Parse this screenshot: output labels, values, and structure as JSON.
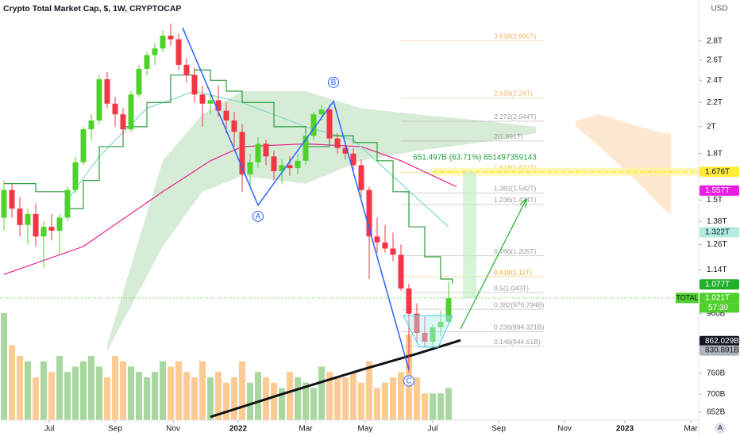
{
  "chart_data": {
    "type": "candlestick",
    "title": "Crypto Total Market Cap, $, 1W, CRYPTOCAP",
    "currency": "USD",
    "auto_scale": "A",
    "log_scale": true,
    "ylim": [
      0.632,
      3.29
    ],
    "xlim": [
      -0.5,
      87.5
    ],
    "yticks": [
      {
        "value": 2.8,
        "label": "2.8T"
      },
      {
        "value": 2.6,
        "label": "2.6T"
      },
      {
        "value": 2.4,
        "label": "2.4T"
      },
      {
        "value": 2.2,
        "label": "2.2T"
      },
      {
        "value": 2,
        "label": "2T"
      },
      {
        "value": 1.8,
        "label": "1.8T"
      },
      {
        "value": 1.5,
        "label": "1.5T"
      },
      {
        "value": 1.38,
        "label": "1.38T"
      },
      {
        "value": 1.26,
        "label": "1.26T"
      },
      {
        "value": 1.14,
        "label": "1.14T"
      },
      {
        "value": 0.96,
        "label": "960B"
      },
      {
        "value": 0.76,
        "label": "760B"
      },
      {
        "value": 0.7,
        "label": "700B"
      },
      {
        "value": 0.652,
        "label": "652B"
      }
    ],
    "xticks": [
      {
        "value": 5.7,
        "label": "Jul"
      },
      {
        "value": 14,
        "label": "Sep"
      },
      {
        "value": 21.3,
        "label": "Nov"
      },
      {
        "value": 29.5,
        "label": "2022",
        "bold": true
      },
      {
        "value": 38,
        "label": "Mar"
      },
      {
        "value": 45.5,
        "label": "May"
      },
      {
        "value": 54,
        "label": "Jul"
      },
      {
        "value": 62.3,
        "label": "Sep"
      },
      {
        "value": 70.6,
        "label": "Nov"
      },
      {
        "value": 78.2,
        "label": "2023",
        "bold": true
      },
      {
        "value": 86.5,
        "label": "Mar"
      }
    ],
    "up_color": "#4fd12c",
    "down_color": "#f23645",
    "candles": [
      [
        1.4,
        1.62,
        1.33,
        1.56
      ],
      [
        1.56,
        1.6,
        1.4,
        1.45
      ],
      [
        1.45,
        1.52,
        1.3,
        1.36
      ],
      [
        1.36,
        1.45,
        1.26,
        1.42
      ],
      [
        1.42,
        1.48,
        1.25,
        1.3
      ],
      [
        1.3,
        1.38,
        1.15,
        1.35
      ],
      [
        1.35,
        1.42,
        1.28,
        1.33
      ],
      [
        1.33,
        1.42,
        1.21,
        1.4
      ],
      [
        1.4,
        1.58,
        1.38,
        1.56
      ],
      [
        1.56,
        1.78,
        1.54,
        1.74
      ],
      [
        1.74,
        2.0,
        1.72,
        1.98
      ],
      [
        1.98,
        2.1,
        1.9,
        2.05
      ],
      [
        2.05,
        2.45,
        2.02,
        2.41
      ],
      [
        2.41,
        2.48,
        2.15,
        2.19
      ],
      [
        2.19,
        2.25,
        2.0,
        2.1
      ],
      [
        2.1,
        2.15,
        1.92,
        1.98
      ],
      [
        1.98,
        2.3,
        1.96,
        2.27
      ],
      [
        2.27,
        2.55,
        2.25,
        2.51
      ],
      [
        2.51,
        2.68,
        2.45,
        2.65
      ],
      [
        2.65,
        2.78,
        2.55,
        2.72
      ],
      [
        2.72,
        2.92,
        2.68,
        2.86
      ],
      [
        2.86,
        3.0,
        2.75,
        2.82
      ],
      [
        2.82,
        2.88,
        2.5,
        2.55
      ],
      [
        2.55,
        2.62,
        2.38,
        2.45
      ],
      [
        2.45,
        2.52,
        2.2,
        2.27
      ],
      [
        2.27,
        2.35,
        2.0,
        2.19
      ],
      [
        2.19,
        2.3,
        2.1,
        2.22
      ],
      [
        2.22,
        2.35,
        2.08,
        2.13
      ],
      [
        2.13,
        2.2,
        1.95,
        2.05
      ],
      [
        2.05,
        2.12,
        1.85,
        1.96
      ],
      [
        1.96,
        2.02,
        1.55,
        1.66
      ],
      [
        1.66,
        1.8,
        1.58,
        1.74
      ],
      [
        1.74,
        1.92,
        1.7,
        1.87
      ],
      [
        1.87,
        1.9,
        1.72,
        1.78
      ],
      [
        1.78,
        1.82,
        1.62,
        1.68
      ],
      [
        1.68,
        1.76,
        1.6,
        1.72
      ],
      [
        1.72,
        1.78,
        1.65,
        1.7
      ],
      [
        1.7,
        1.8,
        1.66,
        1.75
      ],
      [
        1.75,
        1.95,
        1.72,
        1.93
      ],
      [
        1.93,
        2.12,
        1.9,
        2.1
      ],
      [
        2.1,
        2.18,
        2.05,
        2.14
      ],
      [
        2.14,
        2.18,
        1.88,
        1.91
      ],
      [
        1.91,
        1.95,
        1.8,
        1.84
      ],
      [
        1.84,
        1.88,
        1.76,
        1.8
      ],
      [
        1.8,
        1.84,
        1.68,
        1.72
      ],
      [
        1.72,
        1.76,
        1.52,
        1.56
      ],
      [
        1.56,
        1.58,
        1.1,
        1.3
      ],
      [
        1.3,
        1.4,
        1.22,
        1.27
      ],
      [
        1.27,
        1.36,
        1.22,
        1.24
      ],
      [
        1.24,
        1.32,
        1.18,
        1.21
      ],
      [
        1.21,
        1.26,
        1.05,
        1.06
      ],
      [
        1.06,
        1.08,
        0.76,
        0.96
      ],
      [
        0.96,
        1.0,
        0.86,
        0.89
      ],
      [
        0.89,
        0.95,
        0.84,
        0.86
      ],
      [
        0.86,
        0.92,
        0.84,
        0.91
      ],
      [
        0.91,
        0.97,
        0.88,
        0.93
      ],
      [
        0.93,
        1.09,
        0.92,
        1.02
      ]
    ],
    "volume": {
      "up_color": "#a8d8a0",
      "down_color": "#fccb93",
      "values": [
        100,
        70,
        60,
        55,
        40,
        55,
        45,
        60,
        45,
        50,
        55,
        60,
        50,
        40,
        60,
        55,
        50,
        45,
        40,
        45,
        55,
        50,
        55,
        45,
        40,
        55,
        40,
        45,
        35,
        40,
        55,
        35,
        45,
        40,
        35,
        30,
        45,
        40,
        35,
        30,
        50,
        45,
        40,
        40,
        45,
        35,
        55,
        30,
        35,
        40,
        45,
        80,
        40,
        25,
        25,
        25,
        30
      ]
    },
    "clouds": [
      {
        "color": "#c8e6c9",
        "x": [
          13,
          20,
          25,
          30,
          38,
          45,
          52,
          60,
          67
        ],
        "upper": [
          0.85,
          1.75,
          2.1,
          2.3,
          2.3,
          2.15,
          2.1,
          2.05,
          2.0
        ],
        "lower": [
          0.83,
          1.25,
          1.55,
          1.65,
          1.6,
          1.75,
          1.82,
          1.88,
          1.95
        ]
      },
      {
        "color": "#ffe0c2",
        "x": [
          72,
          75,
          80,
          83,
          84
        ],
        "upper": [
          2.05,
          2.1,
          2.0,
          1.95,
          1.95
        ],
        "lower": [
          2.0,
          1.85,
          1.6,
          1.45,
          1.42
        ]
      }
    ],
    "lines": [
      {
        "color": "#e91e8c",
        "x": [
          0,
          10,
          20,
          26,
          30,
          38,
          45,
          50,
          57
        ],
        "values": [
          1.12,
          1.25,
          1.55,
          1.75,
          1.85,
          1.87,
          1.85,
          1.75,
          1.58
        ]
      },
      {
        "color": "#80d8c8",
        "x": [
          8,
          12,
          18,
          24,
          30,
          38,
          44,
          50,
          56
        ],
        "values": [
          1.5,
          1.78,
          2.15,
          2.3,
          2.2,
          2.0,
          1.9,
          1.6,
          1.35
        ]
      },
      {
        "color": "#111111",
        "width": 3,
        "x": [
          26,
          35,
          45,
          52,
          57.5
        ],
        "values": [
          0.64,
          0.7,
          0.77,
          0.82,
          0.865
        ]
      },
      {
        "color": "#2e9e3e",
        "step": true,
        "x": [
          0,
          4,
          8,
          10,
          12,
          15,
          18,
          21,
          24,
          26,
          28,
          30,
          34,
          38,
          41,
          44,
          47,
          49,
          51,
          53,
          55,
          56.5
        ],
        "values": [
          1.6,
          1.55,
          1.45,
          1.62,
          1.85,
          2.0,
          2.2,
          2.45,
          2.5,
          2.4,
          2.3,
          2.2,
          2.0,
          1.85,
          1.93,
          1.88,
          1.75,
          1.55,
          1.35,
          1.2,
          1.1,
          1.08
        ]
      }
    ],
    "waves": {
      "color": "#2962ff",
      "points": [
        {
          "x": 22.5,
          "value": 2.95
        },
        {
          "x": 32,
          "value": 1.47,
          "label": "A"
        },
        {
          "x": 41.5,
          "value": 2.21,
          "label": "B"
        },
        {
          "x": 51,
          "value": 0.77,
          "label": "C"
        }
      ]
    },
    "fib": [
      {
        "label": "3.618(2.805T)",
        "value": 2.805,
        "color": "#f5b266"
      },
      {
        "label": "2.618(2.24T)",
        "value": 2.24,
        "color": "#f5b266"
      },
      {
        "label": "2.272(2.044T)",
        "value": 2.044,
        "color": "#9a9a9a"
      },
      {
        "label": "2(1.891T)",
        "value": 1.891,
        "color": "#9a9a9a"
      },
      {
        "label": "1.618(1.672T)",
        "value": 1.672,
        "color": "#e8c52a"
      },
      {
        "label": "1.382(1.542T)",
        "value": 1.542,
        "color": "#9a9a9a"
      },
      {
        "label": "1.236(1.474T)",
        "value": 1.474,
        "color": "#9a9a9a"
      },
      {
        "label": "0.786(1.205T)",
        "value": 1.205,
        "color": "#9a9a9a"
      },
      {
        "label": "0.618(1.11T)",
        "value": 1.11,
        "color": "#f5a623"
      },
      {
        "label": "0.5(1.043T)",
        "value": 1.043,
        "color": "#9a9a9a"
      },
      {
        "label": "0.382(976.794B)",
        "value": 0.976794,
        "color": "#9a9a9a"
      },
      {
        "label": "0.236(894.321B)",
        "value": 0.894321,
        "color": "#9a9a9a"
      },
      {
        "label": "0.148(844.61B)",
        "value": 0.84461,
        "color": "#9a9a9a"
      }
    ],
    "measure": {
      "label": "651.497B (63.71%) 651497359143",
      "color": "#1b9e3a"
    },
    "symbol": "TOTAL",
    "price_tags": [
      {
        "label": "1.676T",
        "value": 1.676,
        "color": "#ffeb3b",
        "text_color": "#131722",
        "band": true
      },
      {
        "label": "1.557T",
        "value": 1.557,
        "color": "#e91ee0",
        "text_color": "#ffffff"
      },
      {
        "label": "1.322T",
        "value": 1.322,
        "color": "#b2ebe0",
        "text_color": "#131722"
      },
      {
        "label": "1.077T",
        "value": 1.077,
        "color": "#22b02c",
        "text_color": "#ffffff"
      },
      {
        "label": "1.021T",
        "value": 1.021,
        "color": "#4fd12c",
        "text_color": "#ffffff",
        "sub": "57:30",
        "current": true
      },
      {
        "label": "862.029B",
        "value": 0.862029,
        "color": "#131722",
        "text_color": "#ffffff"
      },
      {
        "label": "830.891B",
        "value": 0.830891,
        "color": "#b0b3b8",
        "text_color": "#131722"
      }
    ]
  }
}
